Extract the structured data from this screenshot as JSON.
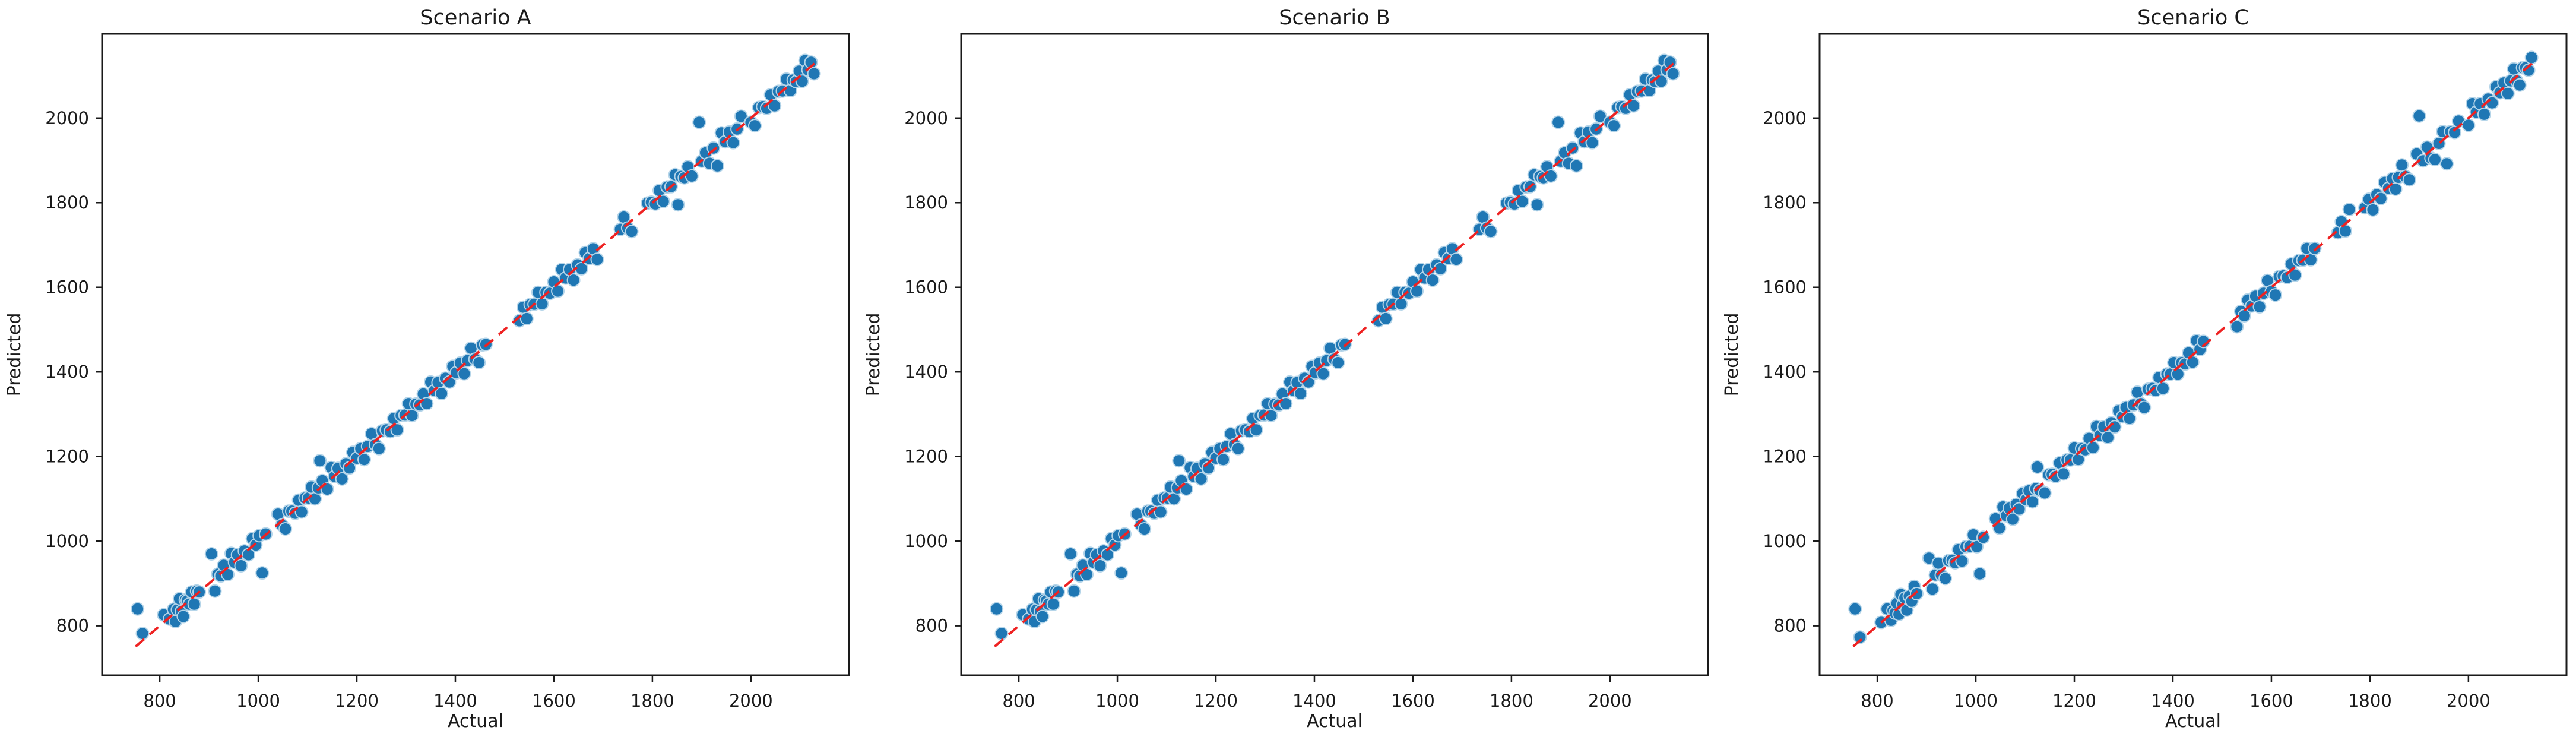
{
  "figure": {
    "background": "#ffffff",
    "kind": "matplotlib-style figure with three scatter subplots"
  },
  "styles": {
    "point_fill": "#1f77b4",
    "point_edge": "#b5d5e9",
    "line_color": "#ee2222",
    "text_color": "#1a1a1a",
    "spine_color": "#1a1a1a"
  },
  "chart_data": [
    {
      "type": "scatter",
      "title": "Scenario A",
      "xlabel": "Actual",
      "ylabel": "Predicted",
      "xlim": [
        683,
        2199
      ],
      "ylim": [
        683,
        2199
      ],
      "xticks": [
        800,
        1000,
        1200,
        1400,
        1600,
        1800,
        2000
      ],
      "yticks": [
        800,
        1000,
        1200,
        1400,
        1600,
        1800,
        2000
      ],
      "grid": false,
      "legend": "none",
      "identity_line": {
        "x0": 751,
        "y0": 751,
        "x1": 2131,
        "y1": 2131,
        "color": "#ee2222",
        "style": "dashed"
      },
      "series": [
        {
          "name": "predictions",
          "color": "#1f77b4",
          "n_points": 162,
          "note": "y = x + dy",
          "x": [
            755,
            765,
            808,
            820,
            828,
            832,
            836,
            840,
            844,
            848,
            852,
            856,
            860,
            865,
            870,
            875,
            880,
            905,
            912,
            918,
            924,
            930,
            938,
            945,
            952,
            958,
            965,
            972,
            980,
            988,
            995,
            1002,
            1008,
            1015,
            1040,
            1048,
            1055,
            1062,
            1068,
            1075,
            1082,
            1088,
            1095,
            1102,
            1108,
            1115,
            1122,
            1125,
            1130,
            1140,
            1148,
            1155,
            1162,
            1170,
            1178,
            1185,
            1192,
            1200,
            1208,
            1215,
            1222,
            1230,
            1238,
            1245,
            1252,
            1260,
            1268,
            1275,
            1282,
            1290,
            1298,
            1305,
            1312,
            1320,
            1328,
            1335,
            1342,
            1350,
            1358,
            1365,
            1372,
            1380,
            1388,
            1395,
            1402,
            1410,
            1418,
            1425,
            1432,
            1440,
            1448,
            1455,
            1462,
            1530,
            1538,
            1545,
            1552,
            1560,
            1568,
            1576,
            1584,
            1592,
            1600,
            1608,
            1616,
            1624,
            1632,
            1640,
            1648,
            1656,
            1664,
            1672,
            1680,
            1688,
            1735,
            1742,
            1750,
            1758,
            1790,
            1798,
            1806,
            1814,
            1822,
            1830,
            1838,
            1846,
            1852,
            1858,
            1865,
            1872,
            1880,
            1895,
            1900,
            1908,
            1916,
            1924,
            1932,
            1940,
            1948,
            1956,
            1964,
            1972,
            1980,
            2000,
            2008,
            2016,
            2024,
            2032,
            2040,
            2048,
            2056,
            2064,
            2072,
            2080,
            2086,
            2092,
            2098,
            2104,
            2110,
            2116,
            2122,
            2128
          ],
          "dy": [
            85,
            17,
            18,
            -4,
            11,
            -22,
            2,
            24,
            -10,
            -26,
            9,
            3,
            -9,
            15,
            -19,
            7,
            0,
            65,
            -30,
            4,
            -6,
            13,
            -17,
            26,
            -2,
            10,
            -23,
            5,
            -12,
            18,
            -4,
            11,
            -83,
            2,
            24,
            -10,
            -26,
            9,
            3,
            -9,
            15,
            -19,
            7,
            0,
            20,
            -15,
            4,
            65,
            13,
            -17,
            26,
            -2,
            10,
            -23,
            5,
            -12,
            18,
            -4,
            11,
            -22,
            2,
            24,
            -10,
            -26,
            9,
            3,
            -9,
            15,
            -19,
            7,
            0,
            20,
            -15,
            4,
            -6,
            13,
            -17,
            26,
            -2,
            10,
            -23,
            5,
            -12,
            18,
            -4,
            11,
            -22,
            2,
            24,
            -10,
            -26,
            9,
            3,
            -9,
            15,
            -19,
            7,
            0,
            20,
            -15,
            4,
            -6,
            13,
            -17,
            26,
            -2,
            10,
            -23,
            5,
            -12,
            18,
            -4,
            11,
            -22,
            2,
            24,
            -10,
            -26,
            9,
            3,
            -9,
            15,
            -19,
            7,
            0,
            20,
            -57,
            4,
            -6,
            13,
            -17,
            95,
            -2,
            10,
            -23,
            5,
            -45,
            25,
            -4,
            11,
            -22,
            2,
            24,
            -10,
            -26,
            9,
            3,
            -9,
            15,
            -19,
            7,
            0,
            20,
            -15,
            4,
            -6,
            13,
            -17,
            26,
            -2,
            10,
            -23
          ]
        }
      ]
    },
    {
      "type": "scatter",
      "title": "Scenario B",
      "xlabel": "Actual",
      "ylabel": "Predicted",
      "xlim": [
        683,
        2199
      ],
      "ylim": [
        683,
        2199
      ],
      "xticks": [
        800,
        1000,
        1200,
        1400,
        1600,
        1800,
        2000
      ],
      "yticks": [
        800,
        1000,
        1200,
        1400,
        1600,
        1800,
        2000
      ],
      "grid": false,
      "legend": "none",
      "identity_line": {
        "x0": 751,
        "y0": 751,
        "x1": 2131,
        "y1": 2131,
        "color": "#ee2222",
        "style": "dashed"
      },
      "series": [
        {
          "name": "predictions",
          "color": "#1f77b4",
          "n_points": 162,
          "note": "y = x + dy",
          "x": [
            755,
            765,
            808,
            820,
            828,
            832,
            836,
            840,
            844,
            848,
            852,
            856,
            860,
            865,
            870,
            875,
            880,
            905,
            912,
            918,
            924,
            930,
            938,
            945,
            952,
            958,
            965,
            972,
            980,
            988,
            995,
            1002,
            1008,
            1015,
            1040,
            1048,
            1055,
            1062,
            1068,
            1075,
            1082,
            1088,
            1095,
            1102,
            1108,
            1115,
            1122,
            1125,
            1130,
            1140,
            1148,
            1155,
            1162,
            1170,
            1178,
            1185,
            1192,
            1200,
            1208,
            1215,
            1222,
            1230,
            1238,
            1245,
            1252,
            1260,
            1268,
            1275,
            1282,
            1290,
            1298,
            1305,
            1312,
            1320,
            1328,
            1335,
            1342,
            1350,
            1358,
            1365,
            1372,
            1380,
            1388,
            1395,
            1402,
            1410,
            1418,
            1425,
            1432,
            1440,
            1448,
            1455,
            1462,
            1530,
            1538,
            1545,
            1552,
            1560,
            1568,
            1576,
            1584,
            1592,
            1600,
            1608,
            1616,
            1624,
            1632,
            1640,
            1648,
            1656,
            1664,
            1672,
            1680,
            1688,
            1735,
            1742,
            1750,
            1758,
            1790,
            1798,
            1806,
            1814,
            1822,
            1830,
            1838,
            1846,
            1852,
            1858,
            1865,
            1872,
            1880,
            1895,
            1900,
            1908,
            1916,
            1924,
            1932,
            1940,
            1948,
            1956,
            1964,
            1972,
            1980,
            2000,
            2008,
            2016,
            2024,
            2032,
            2040,
            2048,
            2056,
            2064,
            2072,
            2080,
            2086,
            2092,
            2098,
            2104,
            2110,
            2116,
            2122,
            2128
          ],
          "dy": [
            85,
            17,
            18,
            -4,
            11,
            -22,
            2,
            24,
            -10,
            -26,
            9,
            3,
            -9,
            15,
            -19,
            7,
            0,
            65,
            -30,
            4,
            -6,
            13,
            -17,
            26,
            -2,
            10,
            -23,
            5,
            -12,
            18,
            -4,
            11,
            -83,
            2,
            24,
            -10,
            -26,
            9,
            3,
            -9,
            15,
            -19,
            7,
            0,
            20,
            -15,
            4,
            65,
            13,
            -17,
            26,
            -2,
            10,
            -23,
            5,
            -12,
            18,
            -4,
            11,
            -22,
            2,
            24,
            -10,
            -26,
            9,
            3,
            -9,
            15,
            -19,
            7,
            0,
            20,
            -15,
            4,
            -6,
            13,
            -17,
            26,
            -2,
            10,
            -23,
            5,
            -12,
            18,
            -4,
            11,
            -22,
            2,
            24,
            -10,
            -26,
            9,
            3,
            -9,
            15,
            -19,
            7,
            0,
            20,
            -15,
            4,
            -6,
            13,
            -17,
            26,
            -2,
            10,
            -23,
            5,
            -12,
            18,
            -4,
            11,
            -22,
            2,
            24,
            -10,
            -26,
            9,
            3,
            -9,
            15,
            -19,
            7,
            0,
            20,
            -57,
            4,
            -6,
            13,
            -17,
            95,
            -2,
            10,
            -23,
            5,
            -45,
            25,
            -4,
            11,
            -22,
            2,
            24,
            -10,
            -26,
            9,
            3,
            -9,
            15,
            -19,
            7,
            0,
            20,
            -15,
            4,
            -6,
            13,
            -17,
            26,
            -2,
            10,
            -23
          ]
        }
      ]
    },
    {
      "type": "scatter",
      "title": "Scenario C",
      "xlabel": "Actual",
      "ylabel": "Predicted",
      "xlim": [
        683,
        2199
      ],
      "ylim": [
        683,
        2199
      ],
      "xticks": [
        800,
        1000,
        1200,
        1400,
        1600,
        1800,
        2000
      ],
      "yticks": [
        800,
        1000,
        1200,
        1400,
        1600,
        1800,
        2000
      ],
      "grid": false,
      "legend": "none",
      "identity_line": {
        "x0": 751,
        "y0": 751,
        "x1": 2131,
        "y1": 2131,
        "color": "#ee2222",
        "style": "dashed"
      },
      "series": [
        {
          "name": "predictions",
          "color": "#1f77b4",
          "n_points": 162,
          "note": "y = x + dy",
          "x": [
            755,
            765,
            808,
            820,
            828,
            832,
            836,
            840,
            844,
            848,
            852,
            856,
            860,
            865,
            870,
            875,
            880,
            905,
            912,
            918,
            924,
            930,
            938,
            945,
            952,
            958,
            965,
            972,
            980,
            988,
            995,
            1002,
            1008,
            1015,
            1040,
            1048,
            1055,
            1062,
            1068,
            1075,
            1082,
            1088,
            1095,
            1102,
            1108,
            1115,
            1122,
            1125,
            1130,
            1140,
            1148,
            1155,
            1162,
            1170,
            1178,
            1185,
            1192,
            1200,
            1208,
            1215,
            1222,
            1230,
            1238,
            1245,
            1252,
            1260,
            1268,
            1275,
            1282,
            1290,
            1298,
            1305,
            1312,
            1320,
            1328,
            1335,
            1342,
            1350,
            1358,
            1365,
            1372,
            1380,
            1388,
            1395,
            1402,
            1410,
            1418,
            1425,
            1432,
            1440,
            1448,
            1455,
            1462,
            1530,
            1538,
            1545,
            1552,
            1560,
            1568,
            1576,
            1584,
            1592,
            1600,
            1608,
            1616,
            1624,
            1632,
            1640,
            1648,
            1656,
            1664,
            1672,
            1680,
            1688,
            1735,
            1742,
            1750,
            1758,
            1790,
            1798,
            1806,
            1814,
            1822,
            1830,
            1838,
            1846,
            1852,
            1858,
            1865,
            1872,
            1880,
            1895,
            1900,
            1908,
            1916,
            1924,
            1932,
            1940,
            1948,
            1956,
            1964,
            1972,
            1980,
            2000,
            2008,
            2016,
            2024,
            2032,
            2040,
            2048,
            2056,
            2064,
            2072,
            2080,
            2086,
            2092,
            2098,
            2104,
            2110,
            2116,
            2122,
            2128
          ],
          "dy": [
            85,
            8,
            0,
            20,
            -15,
            4,
            -6,
            13,
            -17,
            26,
            -2,
            10,
            -23,
            5,
            -12,
            18,
            -4,
            55,
            -25,
            2,
            24,
            -10,
            -26,
            9,
            3,
            -9,
            15,
            -19,
            7,
            0,
            20,
            -15,
            -85,
            -6,
            13,
            -17,
            26,
            -2,
            10,
            -23,
            5,
            -12,
            18,
            -4,
            11,
            -22,
            2,
            50,
            -10,
            -26,
            9,
            3,
            -9,
            15,
            -19,
            7,
            0,
            20,
            -15,
            4,
            -6,
            13,
            -17,
            26,
            -2,
            10,
            -23,
            5,
            -12,
            18,
            -4,
            11,
            -22,
            2,
            24,
            -10,
            -26,
            9,
            3,
            -9,
            15,
            -19,
            7,
            0,
            20,
            -15,
            4,
            -6,
            13,
            -17,
            26,
            -2,
            10,
            -23,
            5,
            -12,
            18,
            -4,
            11,
            -22,
            2,
            24,
            -10,
            -26,
            9,
            3,
            -9,
            15,
            -19,
            7,
            0,
            20,
            -15,
            4,
            -6,
            13,
            -17,
            26,
            -2,
            10,
            -23,
            5,
            -12,
            18,
            -4,
            11,
            -20,
            2,
            24,
            -10,
            -26,
            20,
            105,
            -9,
            15,
            -19,
            -30,
            0,
            20,
            -64,
            4,
            -6,
            13,
            -17,
            26,
            -2,
            10,
            -23,
            5,
            -12,
            18,
            -4,
            11,
            -22,
            2,
            24,
            -10,
            -26,
            9,
            3,
            -9,
            15
          ]
        }
      ]
    }
  ]
}
